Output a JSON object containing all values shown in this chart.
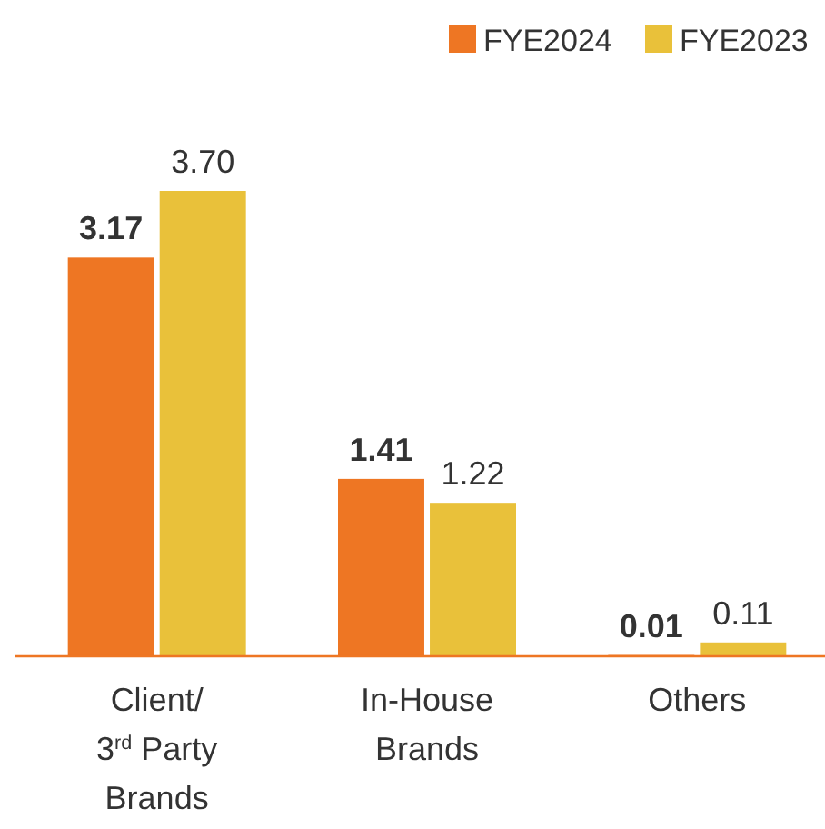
{
  "chart_data": {
    "type": "bar",
    "categories": [
      "Client/ 3$^{rd}$ Party Brands",
      "In-House Brands",
      "Others"
    ],
    "series": [
      {
        "name": "FYE2024",
        "color": "#ee7623",
        "values": [
          3.17,
          1.41,
          0.01
        ],
        "value_labels": [
          "3.17",
          "1.41",
          "0.01"
        ]
      },
      {
        "name": "FYE2023",
        "color": "#e9c13a",
        "values": [
          3.7,
          1.22,
          0.11
        ],
        "value_labels": [
          "3.70",
          "1.22",
          "0.11"
        ]
      }
    ],
    "legend": "top"
  }
}
